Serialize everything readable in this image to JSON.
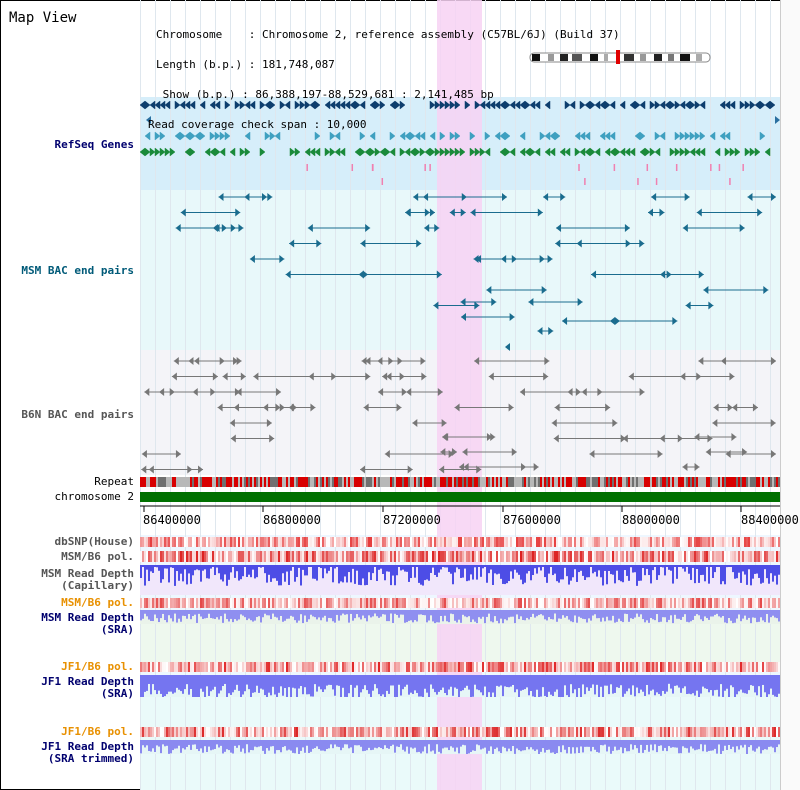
{
  "view_title": "Map View",
  "header": {
    "chromosome": "Chromosome    : Chromosome 2, reference assembly (C57BL/6J) (Build 37)",
    "length": "Length (b.p.) : 181,748,087",
    "show": " Show (b.p.) : 86,388,197-88,529,681 : 2,141,485 bp",
    "coverage": "Read coverage check span : 10,000"
  },
  "tracks": {
    "refseq": "RefSeq Genes",
    "msm_bac": "MSM BAC end pairs",
    "b6n_bac": "B6N BAC end pairs",
    "repeat": "Repeat",
    "chromosome": "chromosome 2",
    "dbsnp": "dbSNP(House)",
    "msm_pol": "MSM/B6 pol.",
    "msm_depth_cap_1": "MSM Read Depth",
    "msm_depth_cap_2": "(Capillary)",
    "msm_pol_sra": "MSM/B6 pol.",
    "msm_depth_sra_1": "MSM Read Depth",
    "msm_depth_sra_2": "(SRA)",
    "jf1_pol_sra": "JF1/B6 pol.",
    "jf1_depth_sra_1": "JF1 Read Depth",
    "jf1_depth_sra_2": "(SRA)",
    "jf1_pol_trim": "JF1/B6 pol.",
    "jf1_depth_trim_1": "JF1 Read Depth",
    "jf1_depth_trim_2": "(SRA trimmed)"
  },
  "axis_ticks": [
    "86400000",
    "86800000",
    "87200000",
    "87600000",
    "88000000",
    "88400000"
  ],
  "colors": {
    "label_blue": "#00006e",
    "label_teal": "#005a78",
    "label_gray": "#555555",
    "label_orange": "#e89000",
    "highlight": "#f7d2f3",
    "chromosome_green": "#007000",
    "refseq_bg": "#d6eefa",
    "lane_bg": "#e8f8fa"
  }
}
